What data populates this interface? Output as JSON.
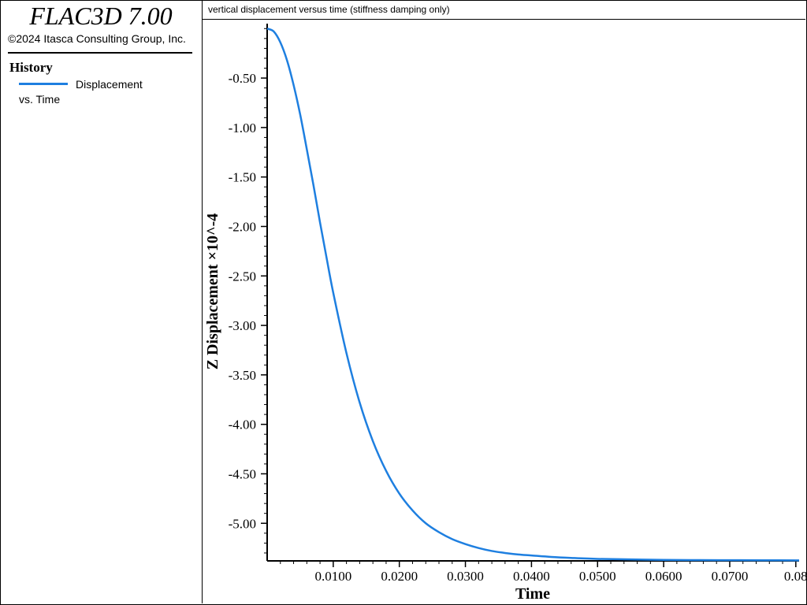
{
  "app": {
    "title": "FLAC3D 7.00",
    "copyright": "©2024 Itasca Consulting Group, Inc."
  },
  "legend": {
    "heading": "History",
    "item_line1": "Displacement",
    "item_line2": "vs. Time",
    "color": "#1e7fe0"
  },
  "plot": {
    "title": "vertical displacement versus time (stiffness damping only)"
  },
  "chart_data": {
    "type": "line",
    "xlabel": "Time",
    "ylabel": "Z Displacement ×10^-4",
    "xlim": [
      0,
      0.0805
    ],
    "ylim": [
      -5.38,
      0.05
    ],
    "x_ticks": [
      "0.0100",
      "0.0200",
      "0.0300",
      "0.0400",
      "0.0500",
      "0.0600",
      "0.0700",
      "0.08"
    ],
    "y_ticks": [
      "-0.50",
      "-1.00",
      "-1.50",
      "-2.00",
      "-2.50",
      "-3.00",
      "-3.50",
      "-4.00",
      "-4.50",
      "-5.00"
    ],
    "y_tick_values": [
      -0.5,
      -1.0,
      -1.5,
      -2.0,
      -2.5,
      -3.0,
      -3.5,
      -4.0,
      -4.5,
      -5.0
    ],
    "series": [
      {
        "color": "#1e7fe0",
        "x": [
          0,
          0.001,
          0.002,
          0.003,
          0.004,
          0.005,
          0.006,
          0.007,
          0.008,
          0.009,
          0.01,
          0.012,
          0.014,
          0.016,
          0.018,
          0.02,
          0.022,
          0.024,
          0.026,
          0.028,
          0.03,
          0.032,
          0.034,
          0.036,
          0.038,
          0.04,
          0.043,
          0.046,
          0.05,
          0.055,
          0.06,
          0.065,
          0.07,
          0.075,
          0.0805
        ],
        "y": [
          0.0,
          -0.03,
          -0.14,
          -0.32,
          -0.57,
          -0.87,
          -1.22,
          -1.58,
          -1.96,
          -2.32,
          -2.67,
          -3.28,
          -3.78,
          -4.17,
          -4.47,
          -4.7,
          -4.87,
          -5.0,
          -5.09,
          -5.16,
          -5.21,
          -5.25,
          -5.28,
          -5.3,
          -5.315,
          -5.325,
          -5.34,
          -5.35,
          -5.36,
          -5.365,
          -5.37,
          -5.372,
          -5.373,
          -5.374,
          -5.375
        ]
      }
    ]
  }
}
